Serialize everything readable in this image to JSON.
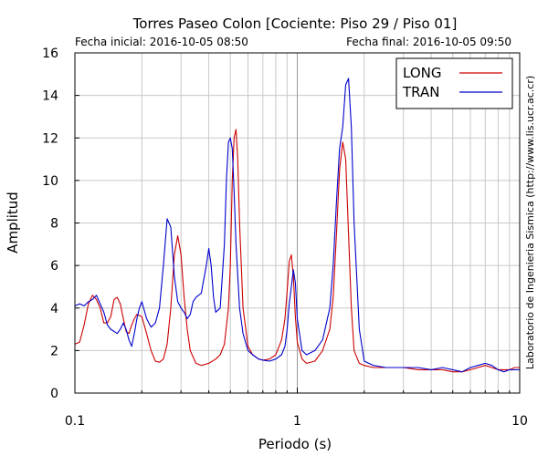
{
  "chart_data": {
    "type": "line",
    "title": "Torres Paseo Colon [Cociente: Piso 29 / Piso 01]",
    "start_label": "Fecha inicial: 2016-10-05 08:50",
    "end_label": "Fecha final: 2016-10-05 09:50",
    "side_label": "Laboratorio de Ingenieria Sismica (http://www.lis.ucr.ac.cr)",
    "xlabel": "Periodo (s)",
    "ylabel": "Amplitud",
    "xscale": "log",
    "xlim": [
      0.1,
      10
    ],
    "ylim": [
      0,
      16
    ],
    "x_ticks": [
      0.1,
      1,
      10
    ],
    "x_tick_labels": [
      "0.1",
      "1",
      "10"
    ],
    "y_ticks": [
      0,
      2,
      4,
      6,
      8,
      10,
      12,
      14,
      16
    ],
    "y_tick_labels": [
      "0",
      "2",
      "4",
      "6",
      "8",
      "10",
      "12",
      "14",
      "16"
    ],
    "grid": true,
    "legend_position": "top-right",
    "series": [
      {
        "name": "LONG",
        "color": "#cc0000",
        "x": [
          0.1,
          0.105,
          0.11,
          0.115,
          0.12,
          0.125,
          0.13,
          0.135,
          0.14,
          0.145,
          0.15,
          0.155,
          0.16,
          0.165,
          0.17,
          0.175,
          0.18,
          0.185,
          0.19,
          0.2,
          0.21,
          0.22,
          0.23,
          0.24,
          0.25,
          0.26,
          0.27,
          0.28,
          0.29,
          0.3,
          0.31,
          0.32,
          0.33,
          0.35,
          0.37,
          0.4,
          0.43,
          0.45,
          0.47,
          0.49,
          0.5,
          0.51,
          0.52,
          0.53,
          0.54,
          0.55,
          0.57,
          0.6,
          0.63,
          0.67,
          0.7,
          0.75,
          0.8,
          0.85,
          0.88,
          0.9,
          0.92,
          0.94,
          0.96,
          0.98,
          1.0,
          1.05,
          1.1,
          1.2,
          1.3,
          1.4,
          1.45,
          1.5,
          1.55,
          1.6,
          1.65,
          1.7,
          1.75,
          1.8,
          1.9,
          2.0,
          2.2,
          2.5,
          3.0,
          3.5,
          4.0,
          4.5,
          5.0,
          5.5,
          6.0,
          6.5,
          7.0,
          7.5,
          8.0,
          8.5,
          9.0,
          9.5,
          10.0
        ],
        "y": [
          2.3,
          2.4,
          3.2,
          4.2,
          4.6,
          4.4,
          4.0,
          3.3,
          3.3,
          3.6,
          4.4,
          4.5,
          4.2,
          3.5,
          2.9,
          2.8,
          3.2,
          3.5,
          3.7,
          3.6,
          2.8,
          2.0,
          1.5,
          1.45,
          1.6,
          2.3,
          4.0,
          6.5,
          7.4,
          6.5,
          4.5,
          3.0,
          2.0,
          1.4,
          1.3,
          1.4,
          1.6,
          1.8,
          2.3,
          4.0,
          6.0,
          10.0,
          12.0,
          12.4,
          11.0,
          8.0,
          4.0,
          2.2,
          1.8,
          1.6,
          1.55,
          1.6,
          1.8,
          2.5,
          3.5,
          4.8,
          6.2,
          6.5,
          5.5,
          3.6,
          2.4,
          1.6,
          1.4,
          1.5,
          2.0,
          3.0,
          4.5,
          7.5,
          10.5,
          11.8,
          11.0,
          7.5,
          4.0,
          2.0,
          1.4,
          1.3,
          1.2,
          1.2,
          1.2,
          1.1,
          1.1,
          1.1,
          1.0,
          1.0,
          1.1,
          1.2,
          1.3,
          1.2,
          1.1,
          1.1,
          1.1,
          1.2,
          1.2
        ]
      },
      {
        "name": "TRAN",
        "color": "#0000cc",
        "x": [
          0.1,
          0.105,
          0.11,
          0.115,
          0.12,
          0.125,
          0.13,
          0.135,
          0.14,
          0.145,
          0.15,
          0.155,
          0.16,
          0.165,
          0.17,
          0.175,
          0.18,
          0.185,
          0.19,
          0.195,
          0.2,
          0.21,
          0.22,
          0.23,
          0.24,
          0.25,
          0.26,
          0.27,
          0.28,
          0.29,
          0.3,
          0.31,
          0.32,
          0.33,
          0.34,
          0.35,
          0.37,
          0.39,
          0.4,
          0.41,
          0.42,
          0.43,
          0.45,
          0.47,
          0.48,
          0.49,
          0.5,
          0.51,
          0.52,
          0.53,
          0.55,
          0.57,
          0.6,
          0.63,
          0.67,
          0.7,
          0.75,
          0.8,
          0.85,
          0.88,
          0.9,
          0.92,
          0.94,
          0.96,
          0.98,
          1.0,
          1.05,
          1.1,
          1.2,
          1.3,
          1.4,
          1.45,
          1.5,
          1.55,
          1.6,
          1.65,
          1.7,
          1.75,
          1.8,
          1.9,
          2.0,
          2.2,
          2.5,
          3.0,
          3.5,
          4.0,
          4.5,
          5.0,
          5.5,
          6.0,
          6.5,
          7.0,
          7.5,
          8.0,
          8.5,
          9.0,
          9.5,
          10.0
        ],
        "y": [
          4.1,
          4.2,
          4.1,
          4.3,
          4.4,
          4.6,
          4.2,
          3.8,
          3.2,
          3.0,
          2.9,
          2.8,
          3.0,
          3.3,
          3.0,
          2.5,
          2.2,
          2.8,
          3.5,
          4.0,
          4.3,
          3.5,
          3.1,
          3.3,
          4.0,
          6.0,
          8.2,
          7.8,
          5.5,
          4.3,
          4.0,
          3.8,
          3.5,
          3.7,
          4.3,
          4.5,
          4.7,
          6.0,
          6.8,
          6.0,
          4.5,
          3.8,
          4.0,
          7.0,
          10.0,
          11.8,
          12.0,
          11.5,
          9.5,
          7.0,
          4.0,
          2.8,
          2.0,
          1.8,
          1.6,
          1.55,
          1.5,
          1.6,
          1.8,
          2.2,
          3.0,
          4.2,
          5.0,
          5.8,
          5.2,
          3.5,
          2.0,
          1.8,
          2.0,
          2.5,
          4.0,
          6.0,
          9.0,
          11.5,
          12.5,
          14.5,
          14.8,
          12.5,
          8.0,
          3.0,
          1.5,
          1.3,
          1.2,
          1.2,
          1.2,
          1.1,
          1.2,
          1.1,
          1.0,
          1.2,
          1.3,
          1.4,
          1.3,
          1.1,
          1.0,
          1.1,
          1.1,
          1.1
        ]
      }
    ]
  }
}
